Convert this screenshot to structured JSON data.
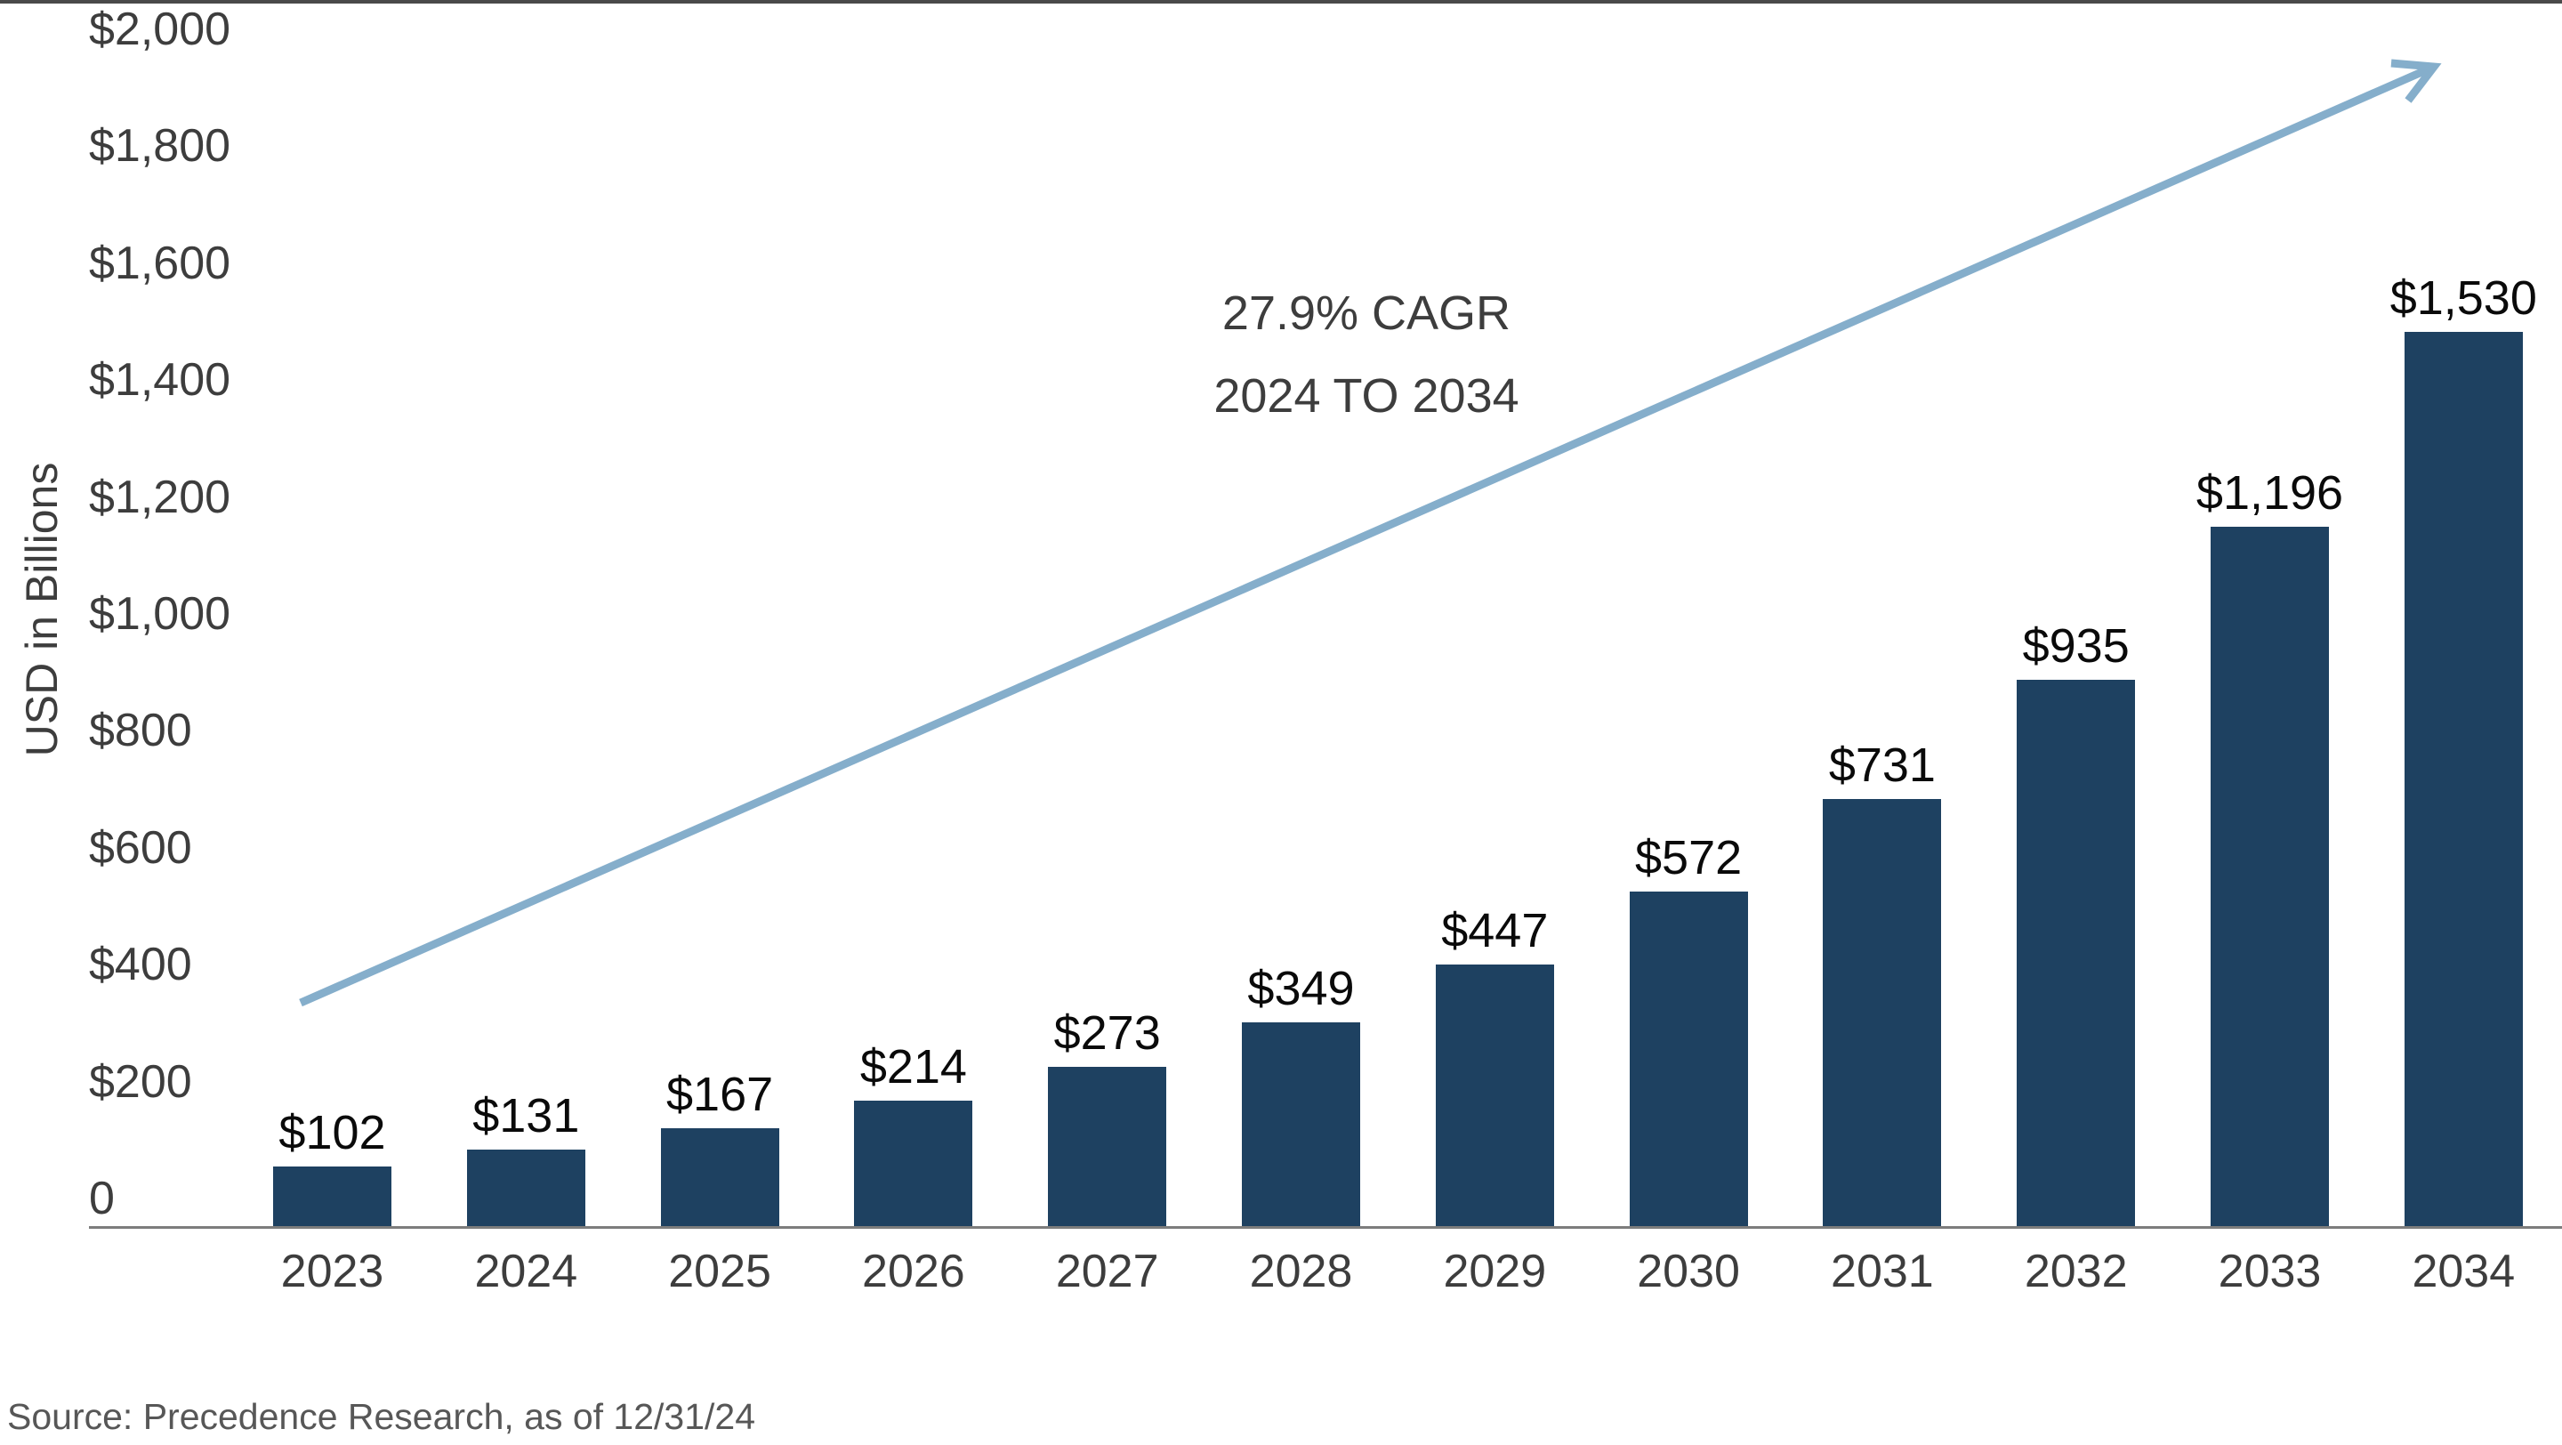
{
  "chart_data": {
    "type": "bar",
    "title": "",
    "xlabel": "",
    "ylabel": "USD in Billions",
    "categories": [
      "2023",
      "2024",
      "2025",
      "2026",
      "2027",
      "2028",
      "2029",
      "2030",
      "2031",
      "2032",
      "2033",
      "2034"
    ],
    "values": [
      102,
      131,
      167,
      214,
      273,
      349,
      447,
      572,
      731,
      935,
      1196,
      1530
    ],
    "value_labels": [
      "$102",
      "$131",
      "$167",
      "$214",
      "$273",
      "$349",
      "$447",
      "$572",
      "$731",
      "$935",
      "$1,196",
      "$1,530"
    ],
    "ylim": [
      0,
      2000
    ],
    "y_ticks": [
      {
        "label": "$2,000",
        "value": 2000
      },
      {
        "label": "$1,800",
        "value": 1800
      },
      {
        "label": "$1,600",
        "value": 1600
      },
      {
        "label": "$1,400",
        "value": 1400
      },
      {
        "label": "$1,200",
        "value": 1200
      },
      {
        "label": "$1,000",
        "value": 1000
      },
      {
        "label": "$800",
        "value": 800
      },
      {
        "label": "$600",
        "value": 600
      },
      {
        "label": "$400",
        "value": 400
      },
      {
        "label": "$200",
        "value": 200
      },
      {
        "label": "0",
        "value": 0
      }
    ],
    "grid": false,
    "legend": "none",
    "annotation": {
      "line1": "27.9% CAGR",
      "line2": "2024 TO 2034"
    },
    "colors": {
      "bar": "#1e4161",
      "arrow": "#85aecb",
      "axis_line": "#7d7d7d",
      "top_rule": "#4a4a4a",
      "tick_text": "#3d3d3d",
      "value_text": "#0a0a0a"
    }
  },
  "source": {
    "text": "Source: Precedence Research, as of 12/31/24"
  }
}
